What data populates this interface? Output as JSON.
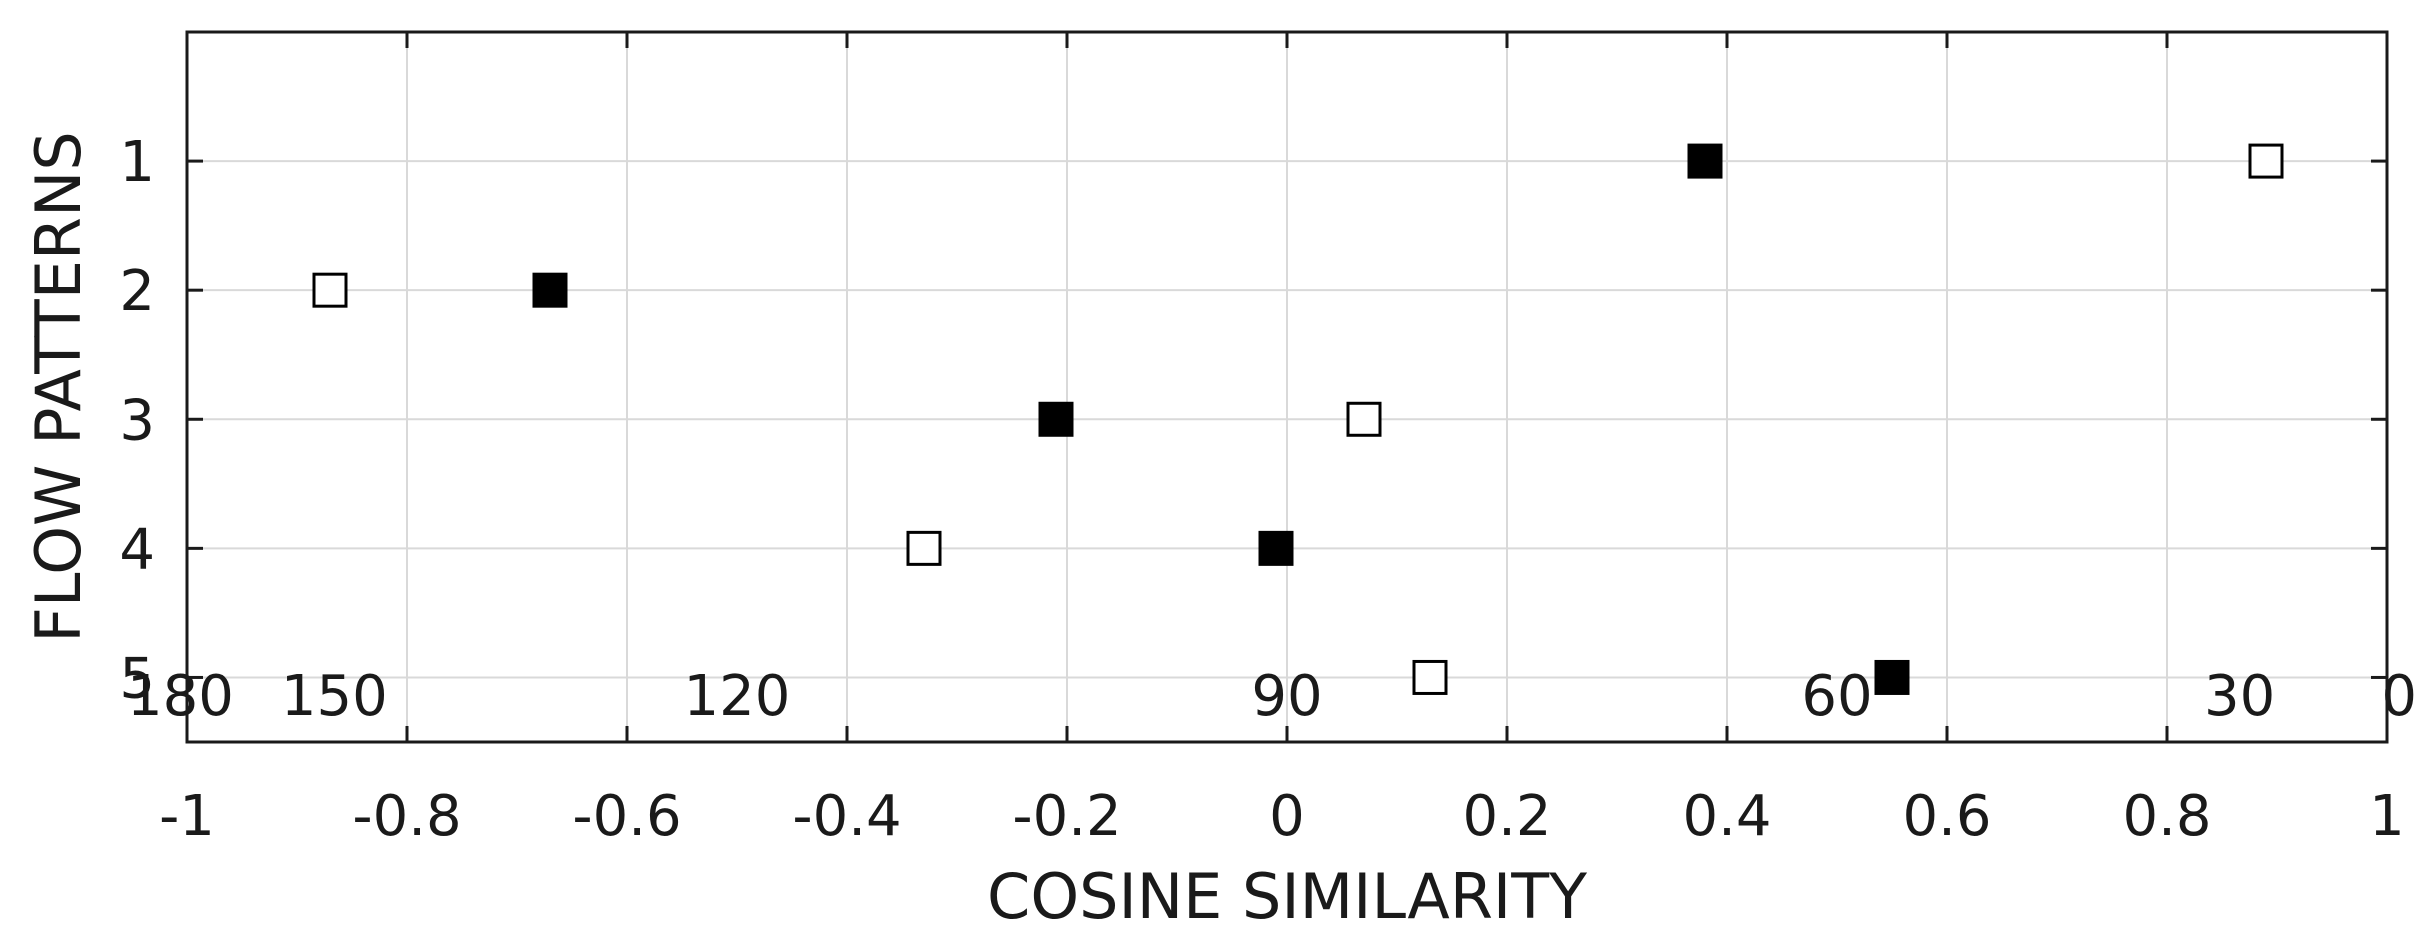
{
  "chart_data": {
    "type": "scatter",
    "xlabel": "COSINE SIMILARITY",
    "ylabel": "FLOW PATTERNS",
    "xlim": [
      -1,
      1
    ],
    "ylim": [
      0,
      5.5
    ],
    "y_reversed": true,
    "grid": true,
    "x_ticks": [
      -1,
      -0.8,
      -0.6,
      -0.4,
      -0.2,
      0,
      0.2,
      0.4,
      0.6,
      0.8,
      1
    ],
    "x_tick_labels": [
      "-1",
      "-0.8",
      "-0.6",
      "-0.4",
      "-0.2",
      "0",
      "0.2",
      "0.4",
      "0.6",
      "0.8",
      "1"
    ],
    "y_ticks": [
      1,
      2,
      3,
      4,
      5
    ],
    "y_tick_labels": [
      "1",
      "2",
      "3",
      "4",
      "5"
    ],
    "secondary_x_axis": {
      "description": "angle in degrees",
      "labels": [
        "180",
        "150",
        "120",
        "90",
        "60",
        "30",
        "0"
      ],
      "angles_deg": [
        180,
        150,
        120,
        90,
        60,
        30,
        0
      ]
    },
    "series": [
      {
        "marker": "filled-square",
        "color": "#000000",
        "points": [
          {
            "x": 0.38,
            "y": 1
          },
          {
            "x": -0.67,
            "y": 2
          },
          {
            "x": -0.21,
            "y": 3
          },
          {
            "x": -0.01,
            "y": 4
          },
          {
            "x": 0.55,
            "y": 5
          }
        ]
      },
      {
        "marker": "open-square",
        "color": "#000000",
        "points": [
          {
            "x": 0.89,
            "y": 1
          },
          {
            "x": -0.87,
            "y": 2
          },
          {
            "x": 0.07,
            "y": 3
          },
          {
            "x": -0.33,
            "y": 4
          },
          {
            "x": 0.13,
            "y": 5
          }
        ]
      }
    ]
  }
}
